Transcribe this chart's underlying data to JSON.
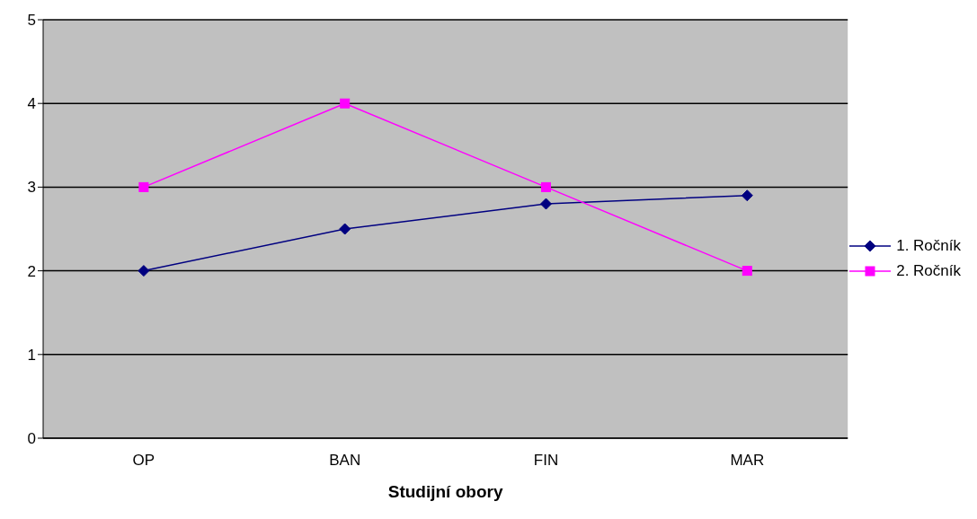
{
  "chart_data": {
    "type": "line",
    "xlabel": "Studijní obory",
    "categories": [
      "OP",
      "BAN",
      "FIN",
      "MAR"
    ],
    "series": [
      {
        "name": "1. Ročník",
        "color": "#000080",
        "marker": "diamond",
        "values": [
          2,
          2.5,
          2.8,
          2.9
        ]
      },
      {
        "name": "2. Ročník",
        "color": "#ff00ff",
        "marker": "square",
        "values": [
          3,
          4,
          3,
          2
        ]
      }
    ],
    "ylim": [
      0,
      5
    ],
    "yticks": [
      0,
      1,
      2,
      3,
      4,
      5
    ],
    "grid": "y",
    "legend": "right"
  }
}
